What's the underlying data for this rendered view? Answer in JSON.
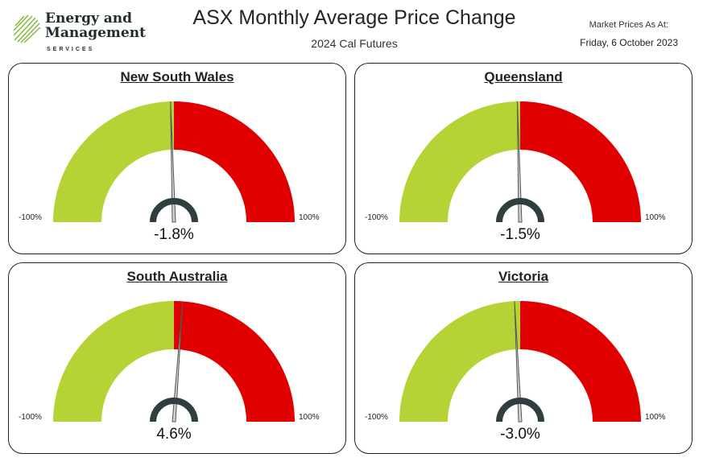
{
  "header": {
    "logo_line1": "Energy and",
    "logo_line2": "Management",
    "logo_sub": "SERVICES",
    "title": "ASX Monthly Average Price Change",
    "subtitle": "2024 Cal Futures",
    "asat_label": "Market Prices As At:",
    "asat_date": "Friday, 6 October 2023"
  },
  "colors": {
    "negative": "#b5d334",
    "positive": "#e00000",
    "needle": "#555555",
    "hub": "#2f3f3f"
  },
  "chart_data": [
    {
      "type": "gauge",
      "title": "New South Wales",
      "value": -1.8,
      "value_label": "-1.8%",
      "min": -100,
      "max": 100,
      "min_label": "-100%",
      "max_label": "100%"
    },
    {
      "type": "gauge",
      "title": "Queensland",
      "value": -1.5,
      "value_label": "-1.5%",
      "min": -100,
      "max": 100,
      "min_label": "-100%",
      "max_label": "100%"
    },
    {
      "type": "gauge",
      "title": "South Australia",
      "value": 4.6,
      "value_label": "4.6%",
      "min": -100,
      "max": 100,
      "min_label": "-100%",
      "max_label": "100%"
    },
    {
      "type": "gauge",
      "title": "Victoria",
      "value": -3.0,
      "value_label": "-3.0%",
      "min": -100,
      "max": 100,
      "min_label": "-100%",
      "max_label": "100%"
    }
  ]
}
